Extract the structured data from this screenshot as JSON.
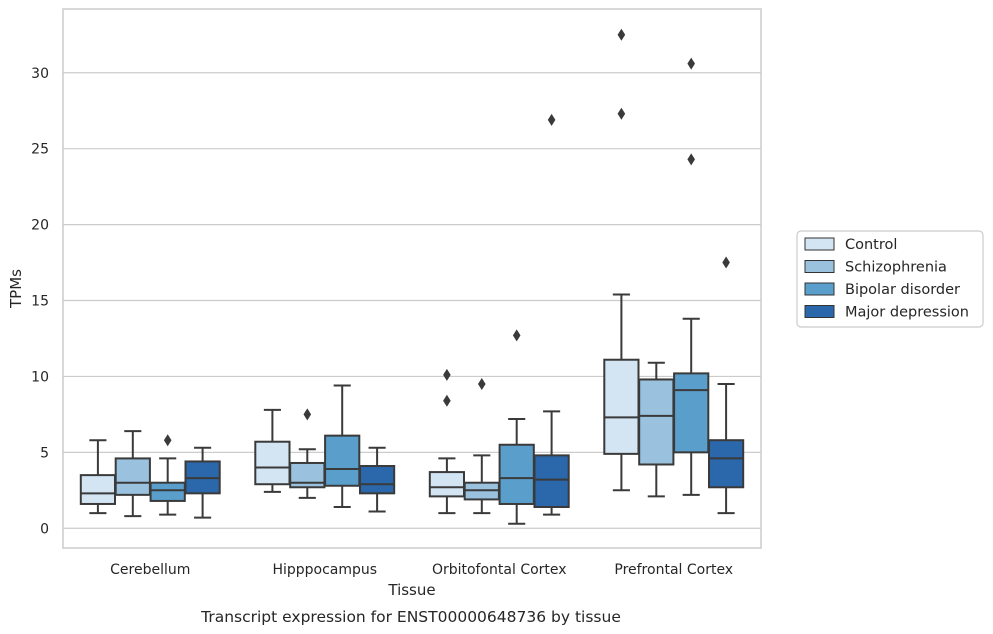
{
  "chart_data": {
    "type": "box",
    "categories": [
      "Cerebellum",
      "Hipppocampus",
      "Orbitofontal Cortex",
      "Prefrontal Cortex"
    ],
    "series": [
      {
        "name": "Control",
        "color": "#d3e4f3",
        "boxes": [
          {
            "whislo": 1.0,
            "q1": 1.6,
            "med": 2.3,
            "q3": 3.5,
            "whishi": 5.8,
            "fliers": []
          },
          {
            "whislo": 2.4,
            "q1": 2.9,
            "med": 4.0,
            "q3": 5.7,
            "whishi": 7.8,
            "fliers": []
          },
          {
            "whislo": 1.0,
            "q1": 2.1,
            "med": 2.7,
            "q3": 3.7,
            "whishi": 4.6,
            "fliers": [
              8.4,
              10.1
            ]
          },
          {
            "whislo": 2.5,
            "q1": 4.9,
            "med": 7.3,
            "q3": 11.1,
            "whishi": 15.4,
            "fliers": [
              27.3,
              32.5
            ]
          }
        ]
      },
      {
        "name": "Schizophrenia",
        "color": "#9ac2de",
        "boxes": [
          {
            "whislo": 0.8,
            "q1": 2.2,
            "med": 3.0,
            "q3": 4.6,
            "whishi": 6.4,
            "fliers": []
          },
          {
            "whislo": 2.0,
            "q1": 2.7,
            "med": 3.0,
            "q3": 4.3,
            "whishi": 5.2,
            "fliers": [
              7.5
            ]
          },
          {
            "whislo": 1.0,
            "q1": 1.9,
            "med": 2.5,
            "q3": 3.0,
            "whishi": 4.8,
            "fliers": [
              9.5
            ]
          },
          {
            "whislo": 2.1,
            "q1": 4.2,
            "med": 7.4,
            "q3": 9.8,
            "whishi": 10.9,
            "fliers": []
          }
        ]
      },
      {
        "name": "Bipolar disorder",
        "color": "#5a9fcc",
        "boxes": [
          {
            "whislo": 0.9,
            "q1": 1.8,
            "med": 2.5,
            "q3": 3.0,
            "whishi": 4.6,
            "fliers": [
              5.8
            ]
          },
          {
            "whislo": 1.4,
            "q1": 2.8,
            "med": 3.9,
            "q3": 6.1,
            "whishi": 9.4,
            "fliers": []
          },
          {
            "whislo": 0.3,
            "q1": 1.6,
            "med": 3.3,
            "q3": 5.5,
            "whishi": 7.2,
            "fliers": [
              12.7
            ]
          },
          {
            "whislo": 2.2,
            "q1": 5.0,
            "med": 9.1,
            "q3": 10.2,
            "whishi": 13.8,
            "fliers": [
              24.3,
              30.6
            ]
          }
        ]
      },
      {
        "name": "Major depression",
        "color": "#2b67ab",
        "boxes": [
          {
            "whislo": 0.7,
            "q1": 2.3,
            "med": 3.3,
            "q3": 4.4,
            "whishi": 5.3,
            "fliers": []
          },
          {
            "whislo": 1.1,
            "q1": 2.3,
            "med": 2.9,
            "q3": 4.1,
            "whishi": 5.3,
            "fliers": []
          },
          {
            "whislo": 0.9,
            "q1": 1.4,
            "med": 3.2,
            "q3": 4.8,
            "whishi": 7.7,
            "fliers": [
              26.9
            ]
          },
          {
            "whislo": 1.0,
            "q1": 2.7,
            "med": 4.6,
            "q3": 5.8,
            "whishi": 9.5,
            "fliers": [
              17.5
            ]
          }
        ]
      }
    ],
    "title": "Transcript expression for ENST00000648736 by tissue",
    "xlabel": "Tissue",
    "ylabel": "TPMs",
    "yticks": [
      0,
      5,
      10,
      15,
      20,
      25,
      30
    ],
    "ylim": [
      -1.3,
      34.2
    ],
    "grid": "horizontal",
    "legend_position": "right"
  }
}
